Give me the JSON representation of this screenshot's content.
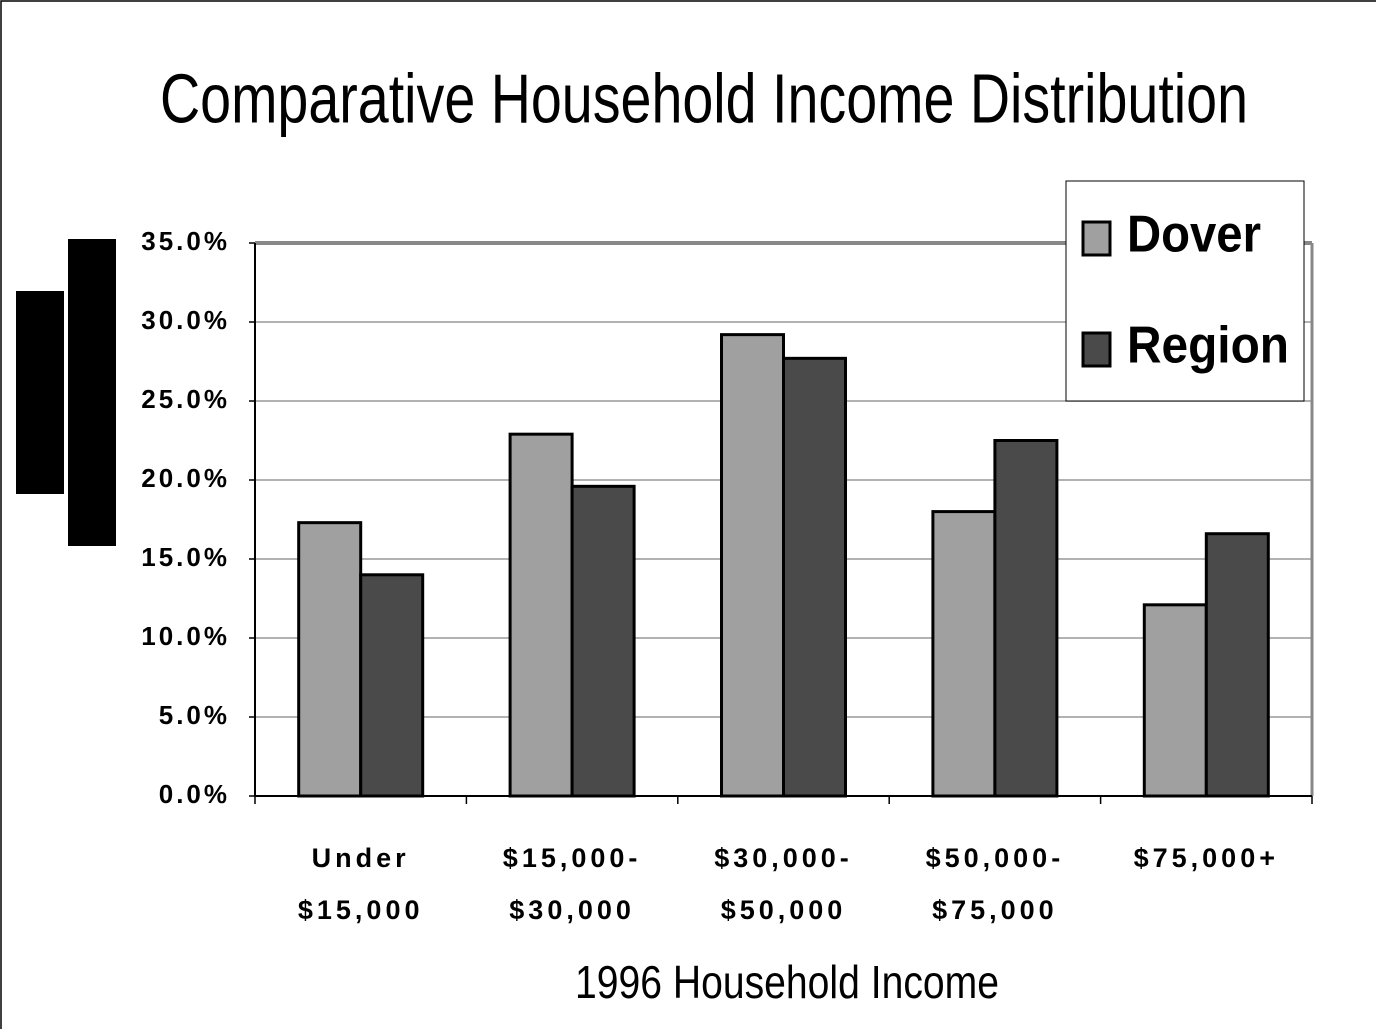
{
  "chart_data": {
    "type": "bar",
    "title": "Comparative Household Income Distribution",
    "x_label": "1996 Household Income",
    "categories": [
      "Under\n$15,000",
      "$15,000-\n$30,000",
      "$30,000-\n$50,000",
      "$50,000-\n$75,000",
      "$75,000+"
    ],
    "series": [
      {
        "name": "Dover",
        "color": "#a0a0a0",
        "values": [
          17.3,
          22.9,
          29.2,
          18.0,
          12.1
        ]
      },
      {
        "name": "Region",
        "color": "#4a4a4a",
        "values": [
          14.0,
          19.6,
          27.7,
          22.5,
          16.6
        ]
      }
    ],
    "ylim": [
      0,
      35
    ],
    "yticks": [
      {
        "value": 0,
        "label": "0.0%"
      },
      {
        "value": 5,
        "label": "5.0%"
      },
      {
        "value": 10,
        "label": "10.0%"
      },
      {
        "value": 15,
        "label": "15.0%"
      },
      {
        "value": 20,
        "label": "20.0%"
      },
      {
        "value": 25,
        "label": "25.0%"
      },
      {
        "value": 30,
        "label": "30.0%"
      },
      {
        "value": 35,
        "label": "35.0%"
      }
    ],
    "grid": true,
    "legend": "top-right"
  }
}
